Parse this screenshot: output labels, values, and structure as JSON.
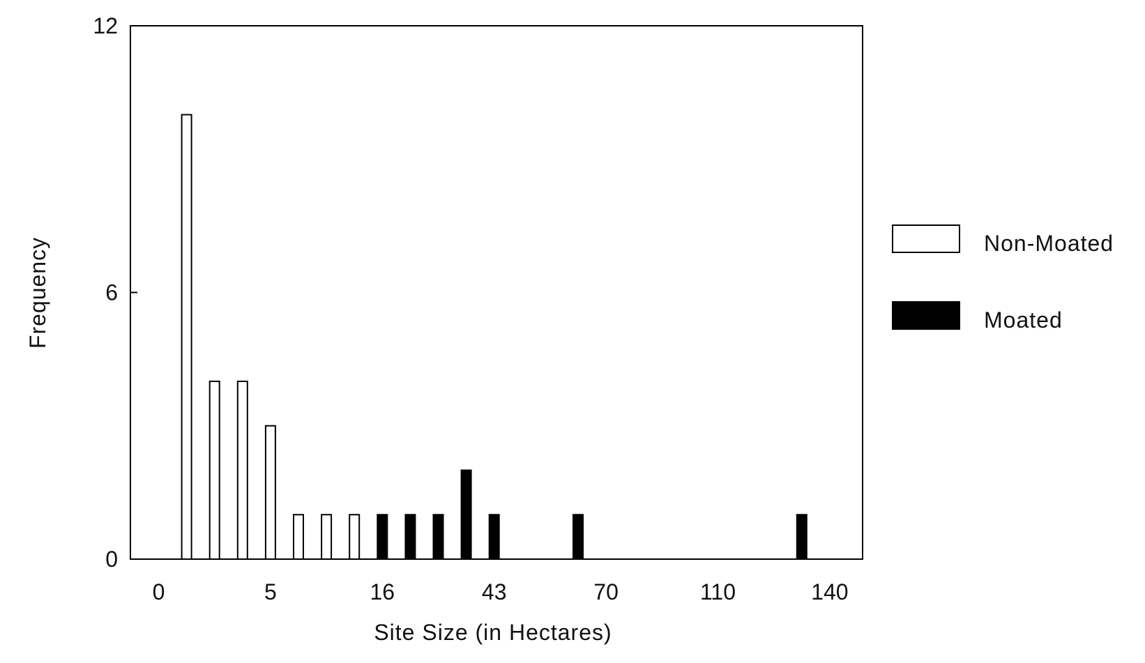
{
  "chart_data": {
    "type": "bar",
    "title": "",
    "xlabel": "Site Size (in Hectares)",
    "ylabel": "Frequency",
    "ylim": [
      0,
      12
    ],
    "yticks": [
      "0",
      "6",
      "12"
    ],
    "xticks": [
      "0",
      "5",
      "16",
      "43",
      "70",
      "110",
      "140"
    ],
    "grid": false,
    "legend_position": "right",
    "series": [
      {
        "name": "Non-Moated",
        "fill": "#ffffff",
        "bars": [
          {
            "x": 1,
            "value": 10
          },
          {
            "x": 2,
            "value": 4
          },
          {
            "x": 3,
            "value": 4
          },
          {
            "x": 4,
            "value": 3
          },
          {
            "x": 5,
            "value": 1
          },
          {
            "x": 6,
            "value": 1
          },
          {
            "x": 7,
            "value": 1
          }
        ]
      },
      {
        "name": "Moated",
        "fill": "#000000",
        "bars": [
          {
            "x": 8,
            "value": 1
          },
          {
            "x": 9,
            "value": 1
          },
          {
            "x": 10,
            "value": 1
          },
          {
            "x": 11,
            "value": 2
          },
          {
            "x": 12,
            "value": 1
          },
          {
            "x": 15,
            "value": 1
          },
          {
            "x": 23,
            "value": 1
          }
        ]
      }
    ]
  }
}
